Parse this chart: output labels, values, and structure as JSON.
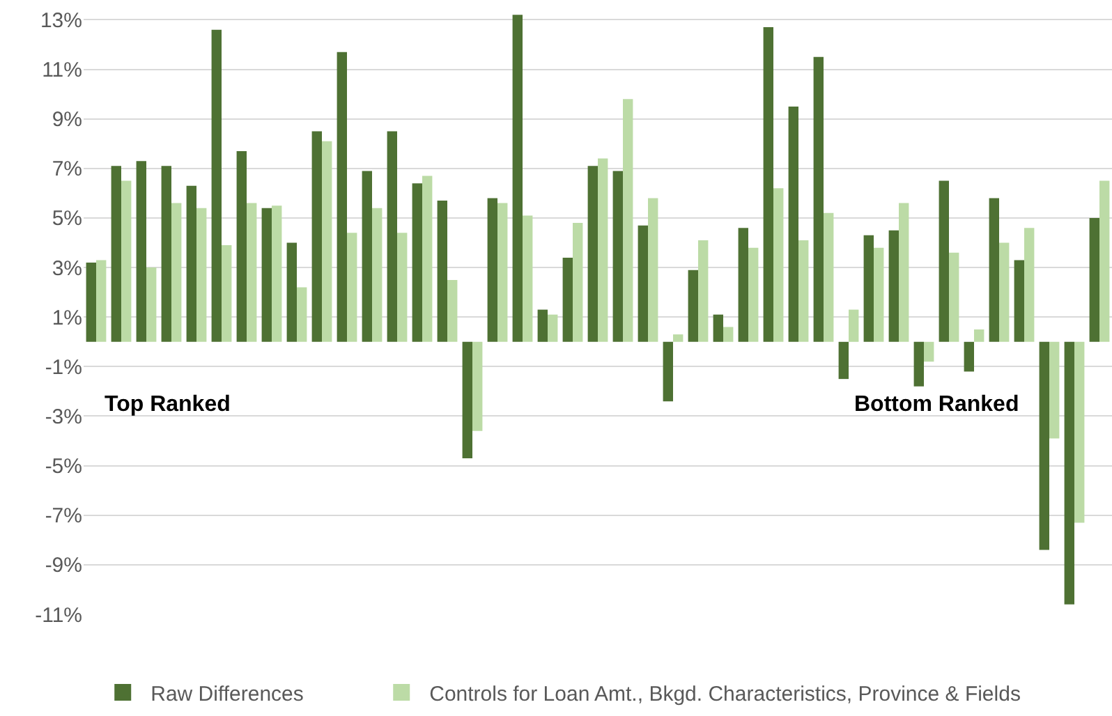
{
  "chart_data": {
    "type": "bar",
    "categories": [
      null,
      null,
      null,
      null,
      null,
      null,
      null,
      null,
      null,
      null,
      null,
      null,
      null,
      null,
      null,
      null,
      null,
      null,
      null,
      null,
      null,
      null,
      null,
      null,
      null,
      null,
      null,
      null,
      null,
      null,
      null,
      null,
      null,
      null,
      null,
      null,
      null,
      null,
      null,
      null,
      null
    ],
    "series": [
      {
        "name": "Raw Differences",
        "color": "#4e7133",
        "values": [
          3.2,
          7.1,
          7.3,
          7.1,
          6.3,
          12.6,
          7.7,
          5.4,
          4.0,
          8.5,
          11.7,
          6.9,
          8.5,
          6.4,
          5.7,
          -4.7,
          5.8,
          13.2,
          1.3,
          3.4,
          7.1,
          6.9,
          4.7,
          -2.4,
          2.9,
          1.1,
          4.6,
          12.7,
          9.5,
          11.5,
          -1.5,
          4.3,
          4.5,
          -1.8,
          6.5,
          -1.2,
          5.8,
          3.3,
          -8.4,
          -10.6,
          5.0
        ]
      },
      {
        "name": "Controls for Loan Amt., Bkgd. Characteristics, Province & Fields",
        "color": "#bcdba6",
        "values": [
          3.3,
          6.5,
          3.0,
          5.6,
          5.4,
          3.9,
          5.6,
          5.5,
          2.2,
          8.1,
          4.4,
          5.4,
          4.4,
          6.7,
          2.5,
          -3.6,
          5.6,
          5.1,
          1.1,
          4.8,
          7.4,
          9.8,
          5.8,
          0.3,
          4.1,
          0.6,
          3.8,
          6.2,
          4.1,
          5.2,
          1.3,
          3.8,
          5.6,
          -0.8,
          3.6,
          0.5,
          4.0,
          4.6,
          -3.9,
          -7.3,
          6.5
        ]
      }
    ],
    "ylim": [
      -11,
      13.8
    ],
    "yticks": [
      {
        "value": -11,
        "label": "-11%"
      },
      {
        "value": -9,
        "label": "-9%"
      },
      {
        "value": -7,
        "label": "-7%"
      },
      {
        "value": -5,
        "label": "-5%"
      },
      {
        "value": -3,
        "label": "-3%"
      },
      {
        "value": -1,
        "label": "-1%"
      },
      {
        "value": 1,
        "label": "1%"
      },
      {
        "value": 3,
        "label": "3%"
      },
      {
        "value": 5,
        "label": "5%"
      },
      {
        "value": 7,
        "label": "7%"
      },
      {
        "value": 9,
        "label": "9%"
      },
      {
        "value": 11,
        "label": "11%"
      },
      {
        "value": 13,
        "label": "13%"
      }
    ],
    "annotations": [
      "Top Ranked",
      "Bottom Ranked"
    ],
    "grid": "y",
    "legend": "bottom",
    "tick_labels": "y"
  }
}
